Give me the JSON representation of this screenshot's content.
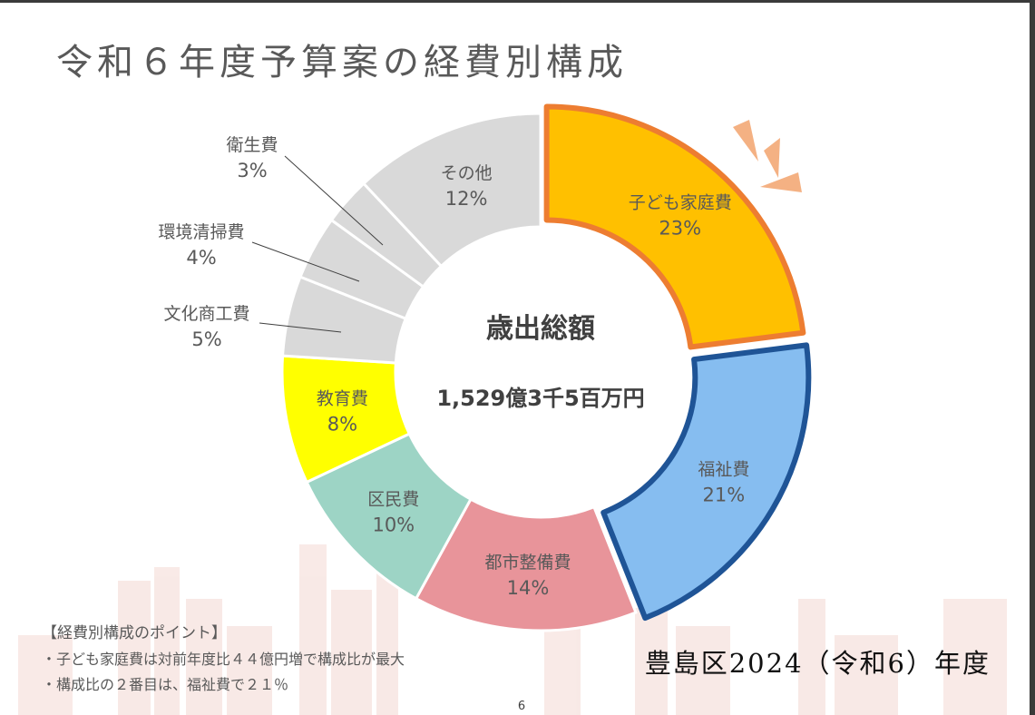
{
  "page": {
    "title": "令和６年度予算案の経費別構成",
    "page_number": "6",
    "caption": "豊島区2024（令和6）年度"
  },
  "center": {
    "label": "歳出総額",
    "amount": "1,529億3千5百万円"
  },
  "notes": {
    "heading": "【経費別構成のポイント】",
    "items": [
      "・子ども家庭費は対前年度比４４億円増で構成比が最大",
      "・構成比の２番目は、福祉費で２１％"
    ]
  },
  "colors": {
    "kodomo": "#FFC000",
    "kodomo_border": "#ED7D31",
    "fukushi": "#86BDF0",
    "fukushi_border": "#1F5496",
    "toshi": "#E8949A",
    "kumin": "#9DD4C5",
    "kyoiku": "#FFFF00",
    "other": "#D9D9D9",
    "burst": "#F4B183",
    "text": "#595959"
  },
  "chart_data": {
    "type": "pie",
    "title": "令和６年度予算案の経費別構成",
    "total_label": "歳出総額",
    "total_value": "1,529億3千5百万円",
    "slices": [
      {
        "name": "子ども家庭費",
        "value": 23,
        "label": "23%",
        "highlight": true
      },
      {
        "name": "福祉費",
        "value": 21,
        "label": "21%",
        "highlight": true
      },
      {
        "name": "都市整備費",
        "value": 14,
        "label": "14%"
      },
      {
        "name": "区民費",
        "value": 10,
        "label": "10%"
      },
      {
        "name": "教育費",
        "value": 8,
        "label": "8%"
      },
      {
        "name": "文化商工費",
        "value": 5,
        "label": "5%"
      },
      {
        "name": "環境清掃費",
        "value": 4,
        "label": "4%"
      },
      {
        "name": "衛生費",
        "value": 3,
        "label": "3%"
      },
      {
        "name": "その他",
        "value": 12,
        "label": "12%"
      }
    ]
  }
}
